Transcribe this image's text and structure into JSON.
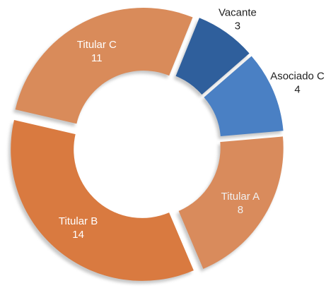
{
  "chart_data": {
    "type": "donut",
    "categories": [
      "Vacante",
      "Asociado C",
      "Titular A",
      "Titular B",
      "Titular C"
    ],
    "values": [
      3,
      4,
      8,
      14,
      11
    ],
    "colors": [
      "#2f5f9c",
      "#4a80c4",
      "#d98b5c",
      "#d97a40",
      "#d98b5a"
    ]
  }
}
